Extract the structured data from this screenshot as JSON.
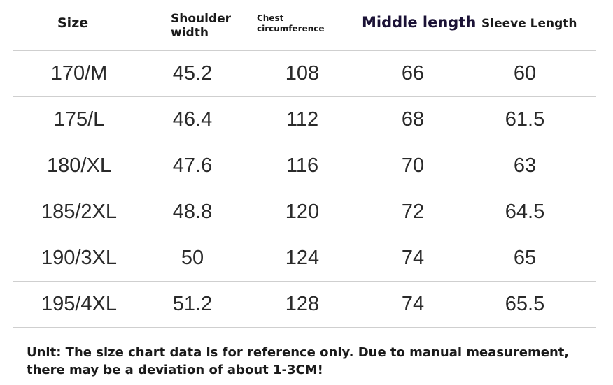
{
  "table": {
    "headers": {
      "size": "Size",
      "shoulder": [
        "Shoulder",
        "width"
      ],
      "chest": [
        "Chest",
        "circumference"
      ],
      "middle": "Middle length",
      "sleeve": "Sleeve Length"
    },
    "rows": [
      [
        "170/M",
        "45.2",
        "108",
        "66",
        "60"
      ],
      [
        "175/L",
        "46.4",
        "112",
        "68",
        "61.5"
      ],
      [
        "180/XL",
        "47.6",
        "116",
        "70",
        "63"
      ],
      [
        "185/2XL",
        "48.8",
        "120",
        "72",
        "64.5"
      ],
      [
        "190/3XL",
        "50",
        "124",
        "74",
        "65"
      ],
      [
        "195/4XL",
        "51.2",
        "128",
        "74",
        "65.5"
      ]
    ]
  },
  "note": {
    "lines": [
      "Unit: The size chart data is for reference only. Due to manual measurement,",
      "there may be a deviation of about 1-3CM!"
    ]
  },
  "colors": {
    "text": "#222222",
    "header_accent": "#1b1236",
    "rule": "#cfcfcf",
    "background": "#ffffff"
  }
}
